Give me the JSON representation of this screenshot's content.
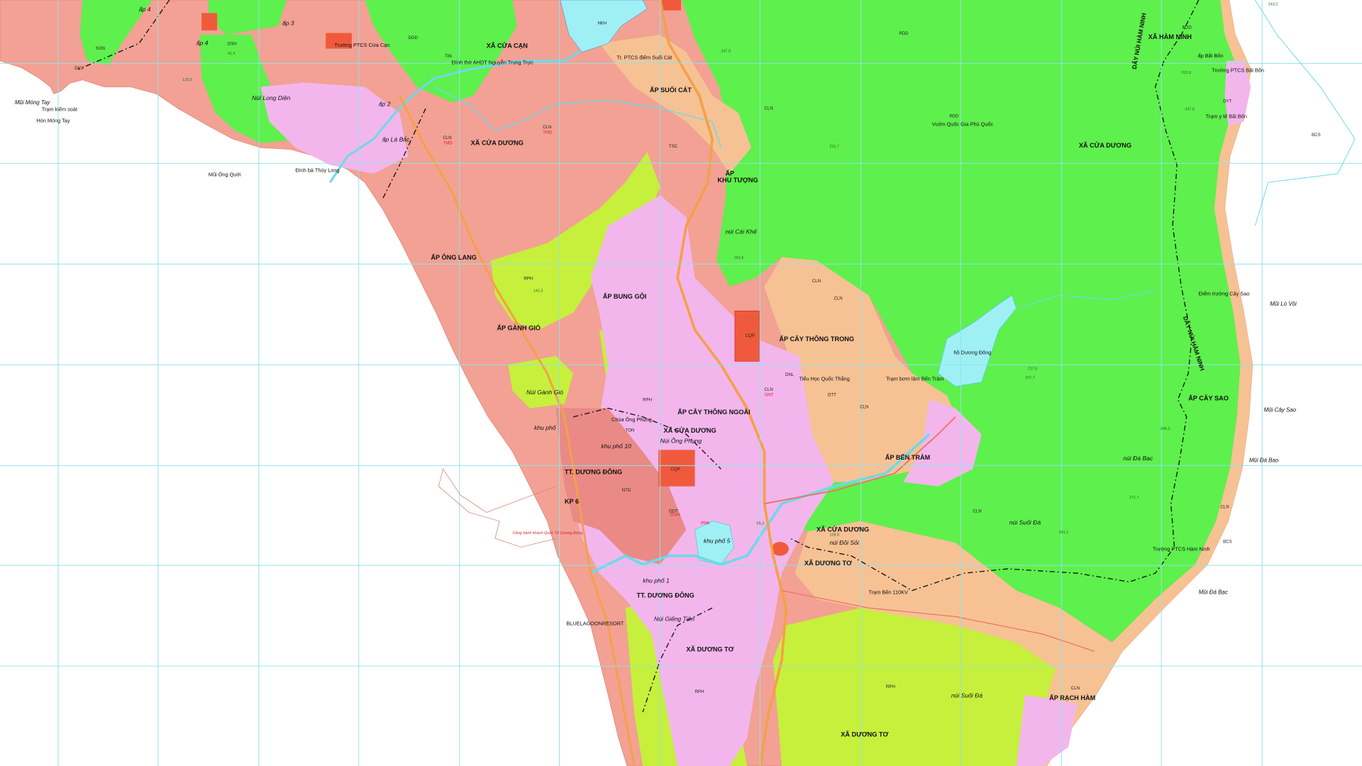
{
  "map": {
    "colors": {
      "sea": "#ffffff",
      "grid": "#8fe3ea",
      "residential_commercial_TMD": "#f2a194",
      "forest_RDD": "#5ef04c",
      "protection_forest_RPH": "#c6f03c",
      "perennial_crops_CLN": "#f6c294",
      "rural_residential_ONT": "#f3b6ec",
      "water": "#9ff0f4",
      "defense_CQP": "#f05a3c",
      "roads": "#f5a04a",
      "boundary": "#111111"
    },
    "admin_labels": {
      "xa_cua_can": "XÃ CỬA CẠN",
      "xa_cua_duong_nw": "XÃ CỬA DƯƠNG",
      "xa_cua_duong_ne": "XÃ CỬA DƯƠNG",
      "xa_cua_duong_c": "XÃ CỬA DƯƠNG",
      "xa_cua_duong_s": "XÃ CỬA DƯƠNG",
      "xa_ham_ninh": "XÃ HÀM NINH",
      "xa_duong_to_1": "XÃ DƯƠNG TƠ",
      "xa_duong_to_2": "XÃ DƯƠNG TƠ",
      "xa_duong_to_3": "XÃ DƯƠNG TƠ",
      "tt_duong_dong_1": "TT. DƯƠNG ĐÔNG",
      "tt_duong_dong_2": "TT. DƯƠNG ĐÔNG"
    },
    "hamlets": {
      "ap_suoi_cat": "ẤP SUỐI CÁT",
      "ap_khu_tuong_1": "ẤP",
      "ap_khu_tuong_2": "KHU TƯỢNG",
      "ap_ong_lang": "ẤP ÔNG LANG",
      "ap_bung_goi": "ẤP BUNG GỘI",
      "ap_ganh_gio": "ẤP GÀNH GIÓ",
      "ap_cay_thong_trong": "ẤP CÂY THÔNG TRONG",
      "ap_cay_thong_ngoai": "ẤP CÂY THÔNG NGOÀI",
      "ap_ben_tram": "ẤP BẾN TRÀM",
      "ap_cay_sao": "ẤP CÂY SAO",
      "ap_rach_ham": "ẤP RẠCH HÀM",
      "ap_3": "ấp 3",
      "ap_4a": "ấp 4",
      "ap_4b": "ấp 4",
      "ap_2": "ấp 2",
      "ap_la_bac": "ấp Lá Bắc",
      "khu_pho_5": "khu phố 5",
      "khu_pho_10": "khu phố 10",
      "khu_pho_1": "khu phố 1",
      "khu_pho": "khu phố",
      "kp6": "KP 6"
    },
    "capes": {
      "mui_mong_tay": "Mũi Móng Tay",
      "hon_mong_tay": "Hòn Móng Tay",
      "mui_ong_quoi": "Mũi Ông Quới",
      "mui_lo_voi": "Mũi Lò Vôi",
      "mui_cay_sao": "Mũi Cây Sao",
      "mui_da_bao": "Mũi Đá Bao",
      "mui_da_bac": "Mũi Đá Bạc"
    },
    "mountains": {
      "nui_long_dien": "Núi Long Diện",
      "nui_cai_khe": "núi Cái Khế",
      "nui_ganh_gio": "Núi Gành Gió",
      "nui_ong_phung": "Núi Ông Phụng",
      "nui_gieng_tien": "Núi Giếng Tiên",
      "nui_doi_soi": "núi Đồi Sỏi",
      "nui_da_bac": "núi Đá Bạc",
      "nui_suoi_da_1": "núi Suối Đá",
      "nui_suoi_da_2": "núi Suối Đá",
      "day_nui_ham_ninh_1": "DÃY NÚI HÀM NINH",
      "day_nui_ham_ninh_2": "DÃY NÚI HÀM NINH",
      "ho_duong_dong": "hồ Dương Đông",
      "vuon_quoc_gia": "Vườn Quốc Gia Phú Quốc"
    },
    "places": {
      "truong_ptcs_cua_can": "Trường PTCS Cửa Cạn",
      "dinh_tho_nguyen_trung_truc": "Đình thờ AHDT Nguyễn Trung Trực",
      "tr_ptcs_suoi_cat": "Tr. PTCS điểm Suối Cát",
      "truong_ptcs_bai_bon": "Trường PTCS Bãi Bổn",
      "tram_y_te_bai_bon": "Trạm y tế Bãi Bổn",
      "tram_bom_ben_tram": "Trạm bơm lâm Bến Tràm",
      "tieu_hoc_quoc_thang": "Tiểu Học Quốc Thắng",
      "diem_truong_cay_sao": "Điểm trường Cây Sao",
      "truong_ptcs_ham_ninh": "Trường PTCS Hàm Ninh",
      "cang_hanh_khach": "Cảng hành khách Quốc Tế Dương Đông",
      "bluelagoon": "BLUELAGOONRESORT",
      "chua_ong_phung": "Chùa Ông Phụng",
      "tram_kiem_soat": "Trạm kiểm soát",
      "dinh_ba_thuy_long": "Đình bà Thủy Long",
      "tram_ben_110kv": "Trạm Bến 110KV",
      "ap_bai_bon": "ấp Bãi Bổn"
    },
    "codes": [
      "CLN",
      "TMD",
      "ONT",
      "ODT",
      "RDD",
      "RPH",
      "CQP",
      "DGD",
      "TSC",
      "DKV",
      "SON",
      "DTT",
      "TIN",
      "BCS",
      "DYT",
      "DSH",
      "NTD",
      "TON",
      "DVH",
      "PNK",
      "NKH",
      "DNL"
    ],
    "elevations": [
      "247,9",
      "243,2",
      "313,9",
      "347,6",
      "211,7",
      "181,5",
      "217,9",
      "167,7",
      "141,5",
      "346,2",
      "271,7",
      "281,1",
      "128,6",
      "55,3",
      "120,5",
      "91,5"
    ]
  }
}
